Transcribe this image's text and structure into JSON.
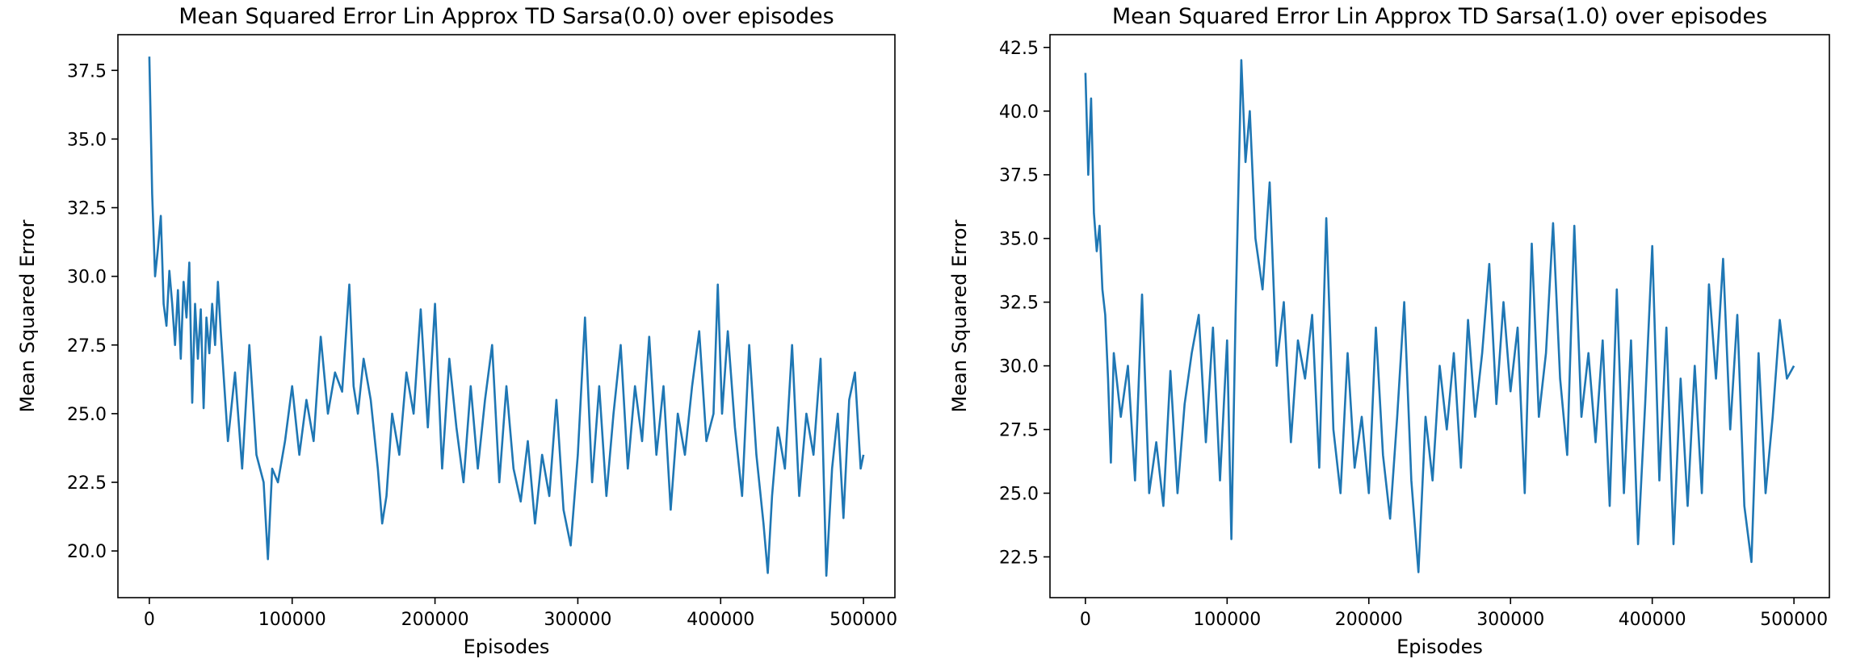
{
  "chart_data": [
    {
      "type": "line",
      "title": "Mean Squared Error Lin Approx TD Sarsa(0.0) over episodes",
      "xlabel": "Episodes",
      "ylabel": "Mean Squared Error",
      "xlim": [
        -22000,
        522000
      ],
      "ylim": [
        18.3,
        38.8
      ],
      "xticks": [
        0,
        100000,
        200000,
        300000,
        400000,
        500000
      ],
      "xtick_labels": [
        "0",
        "100000",
        "200000",
        "300000",
        "400000",
        "500000"
      ],
      "yticks": [
        20.0,
        22.5,
        25.0,
        27.5,
        30.0,
        32.5,
        35.0,
        37.5
      ],
      "ytick_labels": [
        "20.0",
        "22.5",
        "25.0",
        "27.5",
        "30.0",
        "32.5",
        "35.0",
        "37.5"
      ],
      "grid": false,
      "line_color": "#1f77b4",
      "series": [
        {
          "x": [
            0,
            2000,
            4000,
            6000,
            8000,
            10000,
            12000,
            14000,
            16000,
            18000,
            20000,
            22000,
            24000,
            26000,
            28000,
            30000,
            32000,
            34000,
            36000,
            38000,
            40000,
            42000,
            44000,
            46000,
            48000,
            50000,
            55000,
            60000,
            65000,
            70000,
            75000,
            80000,
            83000,
            86000,
            90000,
            95000,
            100000,
            105000,
            110000,
            115000,
            120000,
            125000,
            130000,
            135000,
            140000,
            143000,
            146000,
            150000,
            155000,
            160000,
            163000,
            166000,
            170000,
            175000,
            180000,
            185000,
            190000,
            195000,
            200000,
            205000,
            210000,
            215000,
            220000,
            225000,
            230000,
            235000,
            240000,
            245000,
            250000,
            255000,
            260000,
            265000,
            270000,
            275000,
            280000,
            285000,
            290000,
            295000,
            300000,
            305000,
            310000,
            315000,
            320000,
            325000,
            330000,
            335000,
            340000,
            345000,
            350000,
            355000,
            360000,
            365000,
            370000,
            375000,
            380000,
            385000,
            390000,
            395000,
            398000,
            401000,
            405000,
            410000,
            415000,
            420000,
            425000,
            430000,
            433000,
            436000,
            440000,
            445000,
            450000,
            455000,
            460000,
            465000,
            470000,
            474000,
            478000,
            482000,
            486000,
            490000,
            494000,
            498000,
            500000
          ],
          "y": [
            38.0,
            33.0,
            30.0,
            31.0,
            32.2,
            29.0,
            28.2,
            30.2,
            29.0,
            27.5,
            29.5,
            27.0,
            29.8,
            28.5,
            30.5,
            25.4,
            29.0,
            27.0,
            28.8,
            25.2,
            28.5,
            27.2,
            29.0,
            27.5,
            29.8,
            28.0,
            24.0,
            26.5,
            23.0,
            27.5,
            23.5,
            22.5,
            19.7,
            23.0,
            22.5,
            24.0,
            26.0,
            23.5,
            25.5,
            24.0,
            27.8,
            25.0,
            26.5,
            25.8,
            29.7,
            26.0,
            25.0,
            27.0,
            25.5,
            23.0,
            21.0,
            22.0,
            25.0,
            23.5,
            26.5,
            25.0,
            28.8,
            24.5,
            29.0,
            23.0,
            27.0,
            24.5,
            22.5,
            26.0,
            23.0,
            25.5,
            27.5,
            22.5,
            26.0,
            23.0,
            21.8,
            24.0,
            21.0,
            23.5,
            22.0,
            25.5,
            21.5,
            20.2,
            23.5,
            28.5,
            22.5,
            26.0,
            22.0,
            25.0,
            27.5,
            23.0,
            26.0,
            24.0,
            27.8,
            23.5,
            26.0,
            21.5,
            25.0,
            23.5,
            26.0,
            28.0,
            24.0,
            25.0,
            29.7,
            25.0,
            28.0,
            24.5,
            22.0,
            27.5,
            23.5,
            21.0,
            19.2,
            22.0,
            24.5,
            23.0,
            27.5,
            22.0,
            25.0,
            23.5,
            27.0,
            19.1,
            23.0,
            25.0,
            21.2,
            25.5,
            26.5,
            23.0,
            23.5
          ]
        }
      ]
    },
    {
      "type": "line",
      "title": "Mean Squared Error Lin Approx TD Sarsa(1.0) over episodes",
      "xlabel": "Episodes",
      "ylabel": "Mean Squared Error",
      "xlim": [
        -25000,
        525000
      ],
      "ylim": [
        20.9,
        43.0
      ],
      "xticks": [
        0,
        100000,
        200000,
        300000,
        400000,
        500000
      ],
      "xtick_labels": [
        "0",
        "100000",
        "200000",
        "300000",
        "400000",
        "500000"
      ],
      "yticks": [
        22.5,
        25.0,
        27.5,
        30.0,
        32.5,
        35.0,
        37.5,
        40.0,
        42.5
      ],
      "ytick_labels": [
        "22.5",
        "25.0",
        "27.5",
        "30.0",
        "32.5",
        "35.0",
        "37.5",
        "40.0",
        "42.5"
      ],
      "grid": false,
      "line_color": "#1f77b4",
      "series": [
        {
          "x": [
            0,
            2000,
            4000,
            6000,
            8000,
            10000,
            12000,
            14000,
            16000,
            18000,
            20000,
            25000,
            30000,
            35000,
            40000,
            45000,
            50000,
            55000,
            60000,
            65000,
            70000,
            75000,
            80000,
            85000,
            90000,
            95000,
            100000,
            103000,
            106000,
            110000,
            113000,
            116000,
            120000,
            125000,
            130000,
            135000,
            140000,
            145000,
            150000,
            155000,
            160000,
            165000,
            170000,
            175000,
            180000,
            185000,
            190000,
            195000,
            200000,
            205000,
            210000,
            215000,
            220000,
            225000,
            230000,
            235000,
            240000,
            245000,
            250000,
            255000,
            260000,
            265000,
            270000,
            275000,
            280000,
            285000,
            290000,
            295000,
            300000,
            305000,
            310000,
            315000,
            320000,
            325000,
            330000,
            335000,
            340000,
            345000,
            350000,
            355000,
            360000,
            365000,
            370000,
            375000,
            380000,
            385000,
            390000,
            395000,
            400000,
            405000,
            410000,
            415000,
            420000,
            425000,
            430000,
            435000,
            440000,
            445000,
            450000,
            455000,
            460000,
            465000,
            470000,
            475000,
            480000,
            485000,
            490000,
            495000,
            500000
          ],
          "y": [
            41.5,
            37.5,
            40.5,
            36.0,
            34.5,
            35.5,
            33.0,
            32.0,
            29.5,
            26.2,
            30.5,
            28.0,
            30.0,
            25.5,
            32.8,
            25.0,
            27.0,
            24.5,
            29.8,
            25.0,
            28.5,
            30.5,
            32.0,
            27.0,
            31.5,
            25.5,
            31.0,
            23.2,
            32.0,
            42.0,
            38.0,
            40.0,
            35.0,
            33.0,
            37.2,
            30.0,
            32.5,
            27.0,
            31.0,
            29.5,
            32.0,
            26.0,
            35.8,
            27.5,
            25.0,
            30.5,
            26.0,
            28.0,
            25.0,
            31.5,
            26.5,
            24.0,
            28.0,
            32.5,
            25.5,
            21.9,
            28.0,
            25.5,
            30.0,
            27.5,
            30.5,
            26.0,
            31.8,
            28.0,
            30.5,
            34.0,
            28.5,
            32.5,
            29.0,
            31.5,
            25.0,
            34.8,
            28.0,
            30.5,
            35.6,
            29.5,
            26.5,
            35.5,
            28.0,
            30.5,
            27.0,
            31.0,
            24.5,
            33.0,
            25.0,
            31.0,
            23.0,
            28.5,
            34.7,
            25.5,
            31.5,
            23.0,
            29.5,
            24.5,
            30.0,
            25.0,
            33.2,
            29.5,
            34.2,
            27.5,
            32.0,
            24.5,
            22.3,
            30.5,
            25.0,
            28.0,
            31.8,
            29.5,
            30.0
          ]
        }
      ]
    }
  ]
}
